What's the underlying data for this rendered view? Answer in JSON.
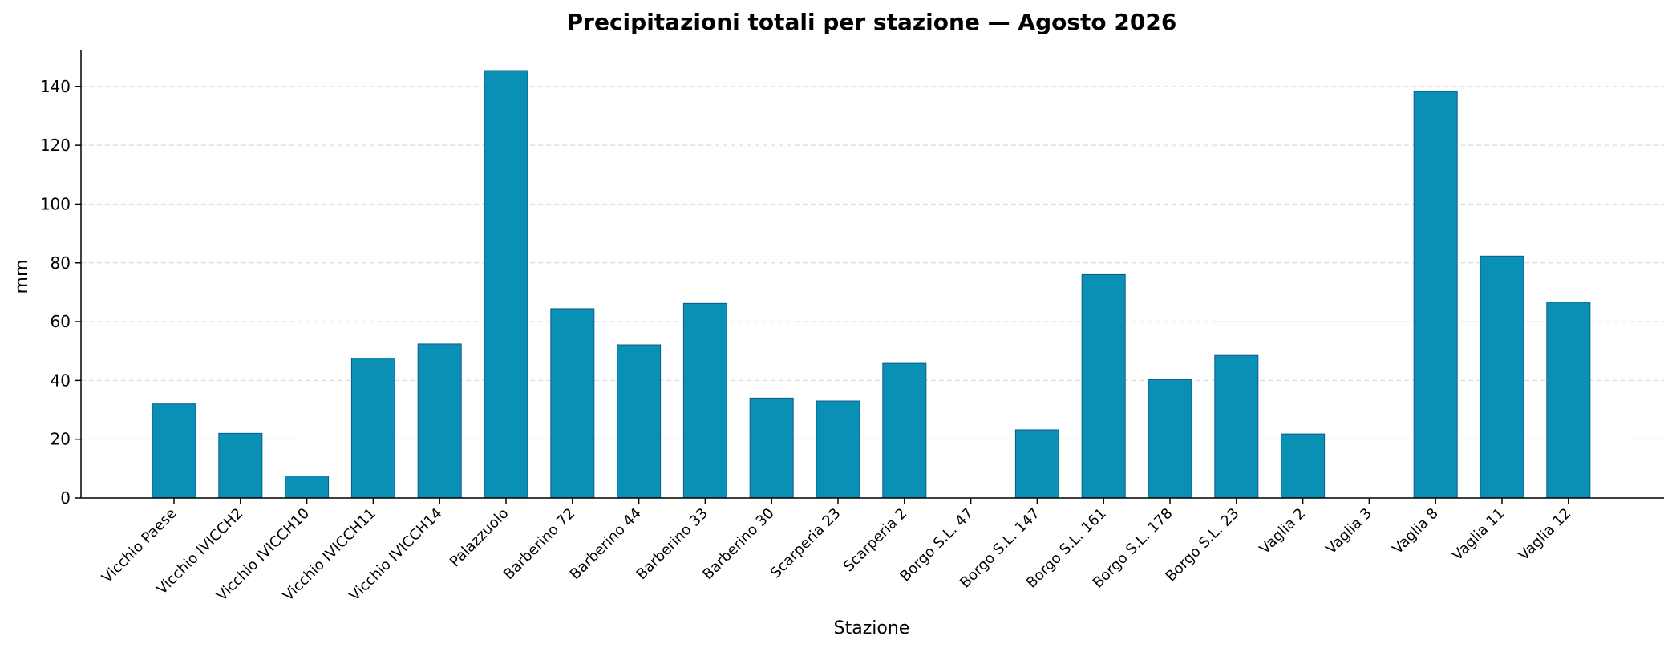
{
  "chart_data": {
    "type": "bar",
    "title": "Precipitazioni totali per stazione — Agosto 2026",
    "xlabel": "Stazione",
    "ylabel": "mm",
    "categories": [
      "Vicchio Paese",
      "Vicchio IVICCH2",
      "Vicchio IVICCH10",
      "Vicchio IVICCH11",
      "Vicchio IVICCH14",
      "Palazzuolo",
      "Barberino 72",
      "Barberino 44",
      "Barberino 33",
      "Barberino 30",
      "Scarperia 23",
      "Scarperia 2",
      "Borgo S.L. 47",
      "Borgo S.L. 147",
      "Borgo S.L. 161",
      "Borgo S.L. 178",
      "Borgo S.L. 23",
      "Vaglia 2",
      "Vaglia 3",
      "Vaglia 8",
      "Vaglia 11",
      "Vaglia 12"
    ],
    "values": [
      32,
      22,
      7.5,
      47.6,
      52.4,
      145.4,
      64.4,
      52.1,
      66.2,
      34.0,
      33.0,
      45.8,
      0,
      23.2,
      76.0,
      40.3,
      48.5,
      21.8,
      0,
      138.3,
      82.3,
      66.6
    ],
    "ylim": [
      0,
      152.5
    ],
    "yticks": [
      0,
      20,
      40,
      60,
      80,
      100,
      120,
      140
    ],
    "grid": true,
    "grid_axis": "y",
    "legend": "none",
    "colors": {
      "bar_fill": "#0a8fb5",
      "bar_edge": "#0b5a8c",
      "grid": "#dcdcdc",
      "axis": "#000000"
    }
  }
}
